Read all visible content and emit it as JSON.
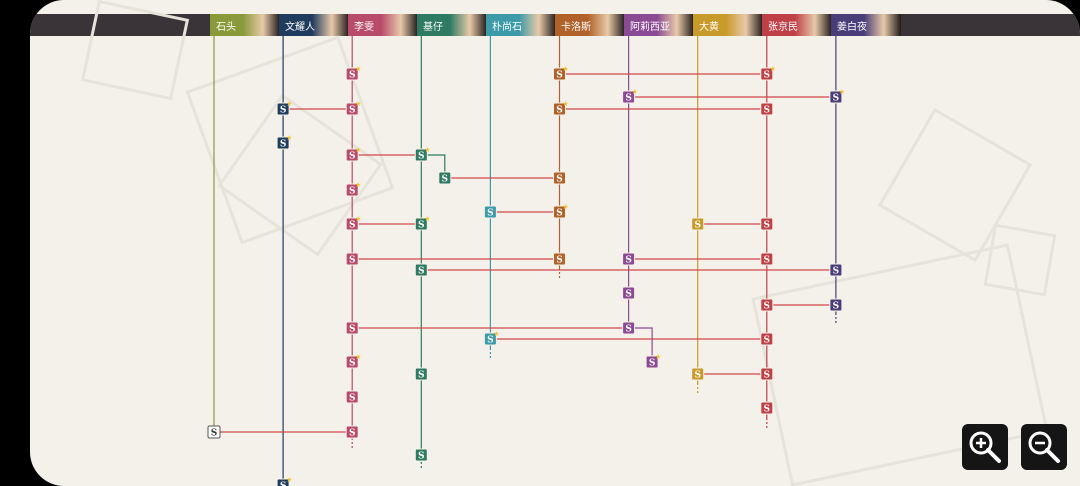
{
  "characters": [
    {
      "name": "石头",
      "color": "#8a9a3a",
      "dash": false
    },
    {
      "name": "文耀人",
      "color": "#1f3b5e",
      "dash": false
    },
    {
      "name": "李雯",
      "color": "#b84a6a",
      "dash": true
    },
    {
      "name": "基仔",
      "color": "#2f7a62",
      "dash": true
    },
    {
      "name": "朴尚石",
      "color": "#3d9aa8",
      "dash": true
    },
    {
      "name": "卡洛斯",
      "color": "#b0622a",
      "dash": true
    },
    {
      "name": "阿莉西亚",
      "color": "#8a4a94",
      "dash": false
    },
    {
      "name": "大黄",
      "color": "#c89a2a",
      "dash": true
    },
    {
      "name": "张京民",
      "color": "#c04048",
      "dash": true
    },
    {
      "name": "姜白夜",
      "color": "#4a3e7a",
      "dash": true
    }
  ],
  "node_label": "S",
  "nodes": [
    {
      "c": 8,
      "row": 74,
      "star": true
    },
    {
      "c": 2,
      "row": 74,
      "star": true
    },
    {
      "c": 5,
      "row": 74,
      "star": true
    },
    {
      "c": 6,
      "row": 97,
      "star": true
    },
    {
      "c": 9,
      "row": 97,
      "star": true
    },
    {
      "c": 1,
      "row": 109,
      "star": true
    },
    {
      "c": 2,
      "row": 109,
      "star": true
    },
    {
      "c": 5,
      "row": 109,
      "star": true
    },
    {
      "c": 8,
      "row": 109,
      "star": false
    },
    {
      "c": 1,
      "row": 143,
      "star": true
    },
    {
      "c": 2,
      "row": 155,
      "star": true
    },
    {
      "c": 3,
      "row": 155,
      "star": true
    },
    {
      "c": 3.34,
      "row": 178,
      "star": false
    },
    {
      "c": 5,
      "row": 178,
      "star": false
    },
    {
      "c": 2,
      "row": 190,
      "star": true
    },
    {
      "c": 4,
      "row": 212,
      "star": false
    },
    {
      "c": 5,
      "row": 212,
      "star": true
    },
    {
      "c": 2,
      "row": 224,
      "star": true
    },
    {
      "c": 3,
      "row": 224,
      "star": true
    },
    {
      "c": 7,
      "row": 224,
      "star": false
    },
    {
      "c": 8,
      "row": 224,
      "star": false
    },
    {
      "c": 2,
      "row": 259,
      "star": false
    },
    {
      "c": 5,
      "row": 259,
      "star": false
    },
    {
      "c": 6,
      "row": 259,
      "star": false
    },
    {
      "c": 8,
      "row": 259,
      "star": false
    },
    {
      "c": 3,
      "row": 270,
      "star": false
    },
    {
      "c": 9,
      "row": 270,
      "star": false
    },
    {
      "c": 6,
      "row": 293,
      "star": false
    },
    {
      "c": 8,
      "row": 305,
      "star": false
    },
    {
      "c": 9,
      "row": 305,
      "star": false
    },
    {
      "c": 2,
      "row": 328,
      "star": false
    },
    {
      "c": 6,
      "row": 328,
      "star": false
    },
    {
      "c": 4,
      "row": 339,
      "star": true
    },
    {
      "c": 8,
      "row": 339,
      "star": false
    },
    {
      "c": 6.34,
      "row": 362,
      "star": true
    },
    {
      "c": 2,
      "row": 362,
      "star": true
    },
    {
      "c": 3,
      "row": 374,
      "star": false
    },
    {
      "c": 7,
      "row": 374,
      "star": false
    },
    {
      "c": 8,
      "row": 374,
      "star": false
    },
    {
      "c": 2,
      "row": 397,
      "star": false
    },
    {
      "c": 8,
      "row": 408,
      "star": false
    },
    {
      "c": 0,
      "row": 432,
      "star": false
    },
    {
      "c": 2,
      "row": 432,
      "star": false
    },
    {
      "c": 3,
      "row": 455,
      "star": false
    },
    {
      "c": 1,
      "row": 485,
      "star": true
    }
  ],
  "links": [
    {
      "a": 5,
      "b": 8,
      "row": 74
    },
    {
      "a": 6,
      "b": 9,
      "row": 97
    },
    {
      "a": 1,
      "b": 2,
      "row": 109
    },
    {
      "a": 5,
      "b": 8,
      "row": 109
    },
    {
      "a": 2,
      "b": 3,
      "row": 155
    },
    {
      "a": 3.34,
      "b": 5,
      "row": 178
    },
    {
      "a": 4,
      "b": 5,
      "row": 212
    },
    {
      "a": 2,
      "b": 3,
      "row": 224
    },
    {
      "a": 7,
      "b": 8,
      "row": 224
    },
    {
      "a": 2,
      "b": 5,
      "row": 259
    },
    {
      "a": 6,
      "b": 8,
      "row": 259
    },
    {
      "a": 3,
      "b": 9,
      "row": 270
    },
    {
      "a": 8,
      "b": 9,
      "row": 305
    },
    {
      "a": 2,
      "b": 6,
      "row": 328
    },
    {
      "a": 4,
      "b": 8,
      "row": 339
    },
    {
      "a": 7,
      "b": 8,
      "row": 374
    },
    {
      "a": 0,
      "b": 2,
      "row": 432
    }
  ],
  "zoom": {
    "in_icon": "zoom-in-icon",
    "out_icon": "zoom-out-icon"
  }
}
